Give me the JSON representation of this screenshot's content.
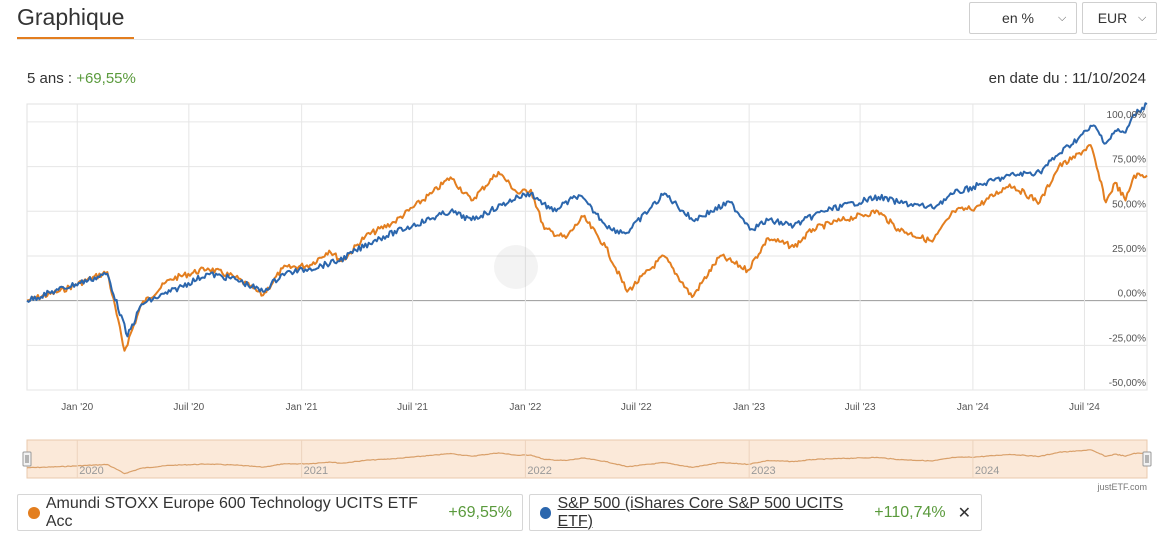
{
  "header": {
    "title": "Graphique",
    "unit_select": "en %",
    "currency_select": "EUR"
  },
  "summary": {
    "period_label": "5 ans : ",
    "period_value": "+69,55%",
    "asof": "en date du : 11/10/2024"
  },
  "colors": {
    "series1": "#e37e1f",
    "series2": "#2b66ad",
    "positive": "#5a9a3c",
    "accent": "#e37e1f"
  },
  "chart_data": {
    "type": "line",
    "ylim": [
      -50,
      110
    ],
    "y_ticks": [
      "100,00%",
      "75,00%",
      "50,00%",
      "25,00%",
      "0,00%",
      "-25,00%",
      "-50,00%"
    ],
    "y_tick_values": [
      100,
      75,
      50,
      25,
      0,
      -25,
      -50
    ],
    "x_ticks": [
      "Jan '20",
      "Juil '20",
      "Jan '21",
      "Juil '21",
      "Jan '22",
      "Juil '22",
      "Jan '23",
      "Juil '23",
      "Jan '24",
      "Juil '24"
    ],
    "x_tick_dates": [
      "2020-01-01",
      "2020-07-01",
      "2021-01-01",
      "2021-07-01",
      "2022-01-01",
      "2022-07-01",
      "2023-01-01",
      "2023-07-01",
      "2024-01-01",
      "2024-07-01"
    ],
    "x_range": [
      "2019-10-11",
      "2024-10-11"
    ],
    "navigator_years": [
      "2020",
      "2021",
      "2022",
      "2023",
      "2024"
    ],
    "series": [
      {
        "name": "Amundi STOXX Europe 600 Technology UCITS ETF Acc",
        "x": [
          "2019-10-11",
          "2019-12-01",
          "2020-02-19",
          "2020-03-18",
          "2020-04-15",
          "2020-06-01",
          "2020-08-01",
          "2020-09-15",
          "2020-10-30",
          "2020-12-01",
          "2021-01-15",
          "2021-02-15",
          "2021-03-08",
          "2021-04-15",
          "2021-06-01",
          "2021-08-01",
          "2021-09-01",
          "2021-10-05",
          "2021-11-18",
          "2021-12-20",
          "2022-01-10",
          "2022-02-01",
          "2022-03-08",
          "2022-04-05",
          "2022-05-12",
          "2022-06-16",
          "2022-08-15",
          "2022-09-30",
          "2022-11-15",
          "2022-12-30",
          "2023-02-01",
          "2023-03-15",
          "2023-04-15",
          "2023-06-01",
          "2023-07-30",
          "2023-09-01",
          "2023-10-27",
          "2023-12-01",
          "2024-01-05",
          "2024-03-01",
          "2024-04-19",
          "2024-05-20",
          "2024-06-10",
          "2024-07-11",
          "2024-08-05",
          "2024-08-20",
          "2024-09-06",
          "2024-09-20",
          "2024-10-11"
        ],
        "y": [
          0,
          5,
          16,
          -28,
          -2,
          12,
          18,
          13,
          3,
          18,
          20,
          28,
          22,
          36,
          44,
          60,
          69,
          56,
          72,
          60,
          62,
          40,
          35,
          47,
          30,
          5,
          25,
          2,
          25,
          17,
          35,
          30,
          40,
          45,
          50,
          40,
          33,
          50,
          52,
          65,
          55,
          75,
          79,
          87,
          55,
          66,
          56,
          70,
          70
        ]
      },
      {
        "name": "S&P 500 (iShares Core S&P 500 UCITS ETF)",
        "x": [
          "2019-10-11",
          "2019-12-01",
          "2020-02-19",
          "2020-03-23",
          "2020-04-15",
          "2020-06-01",
          "2020-08-01",
          "2020-09-15",
          "2020-10-30",
          "2020-12-01",
          "2021-01-15",
          "2021-03-01",
          "2021-05-01",
          "2021-07-01",
          "2021-09-01",
          "2021-10-05",
          "2021-12-20",
          "2022-01-10",
          "2022-02-15",
          "2022-03-29",
          "2022-05-20",
          "2022-06-16",
          "2022-08-16",
          "2022-10-01",
          "2022-12-01",
          "2023-01-05",
          "2023-02-01",
          "2023-03-15",
          "2023-05-01",
          "2023-07-31",
          "2023-09-01",
          "2023-10-27",
          "2023-12-01",
          "2024-01-15",
          "2024-03-01",
          "2024-04-19",
          "2024-05-20",
          "2024-07-16",
          "2024-08-05",
          "2024-08-20",
          "2024-09-06",
          "2024-09-20",
          "2024-10-11"
        ],
        "y": [
          0,
          6,
          15,
          -20,
          -2,
          5,
          15,
          12,
          5,
          15,
          18,
          22,
          34,
          42,
          50,
          45,
          58,
          60,
          50,
          59,
          40,
          38,
          60,
          45,
          55,
          40,
          45,
          42,
          50,
          58,
          55,
          52,
          60,
          65,
          70,
          72,
          82,
          98,
          88,
          95,
          94,
          104,
          110
        ]
      }
    ]
  },
  "legend": {
    "item1": {
      "name": "Amundi STOXX Europe 600 Technology UCITS ETF Acc",
      "value": "+69,55%"
    },
    "item2": {
      "name": "S&P 500 (iShares Core S&P 500 UCITS ETF)",
      "value": "+110,74%",
      "close": "✕"
    }
  },
  "credit": "justETF.com"
}
